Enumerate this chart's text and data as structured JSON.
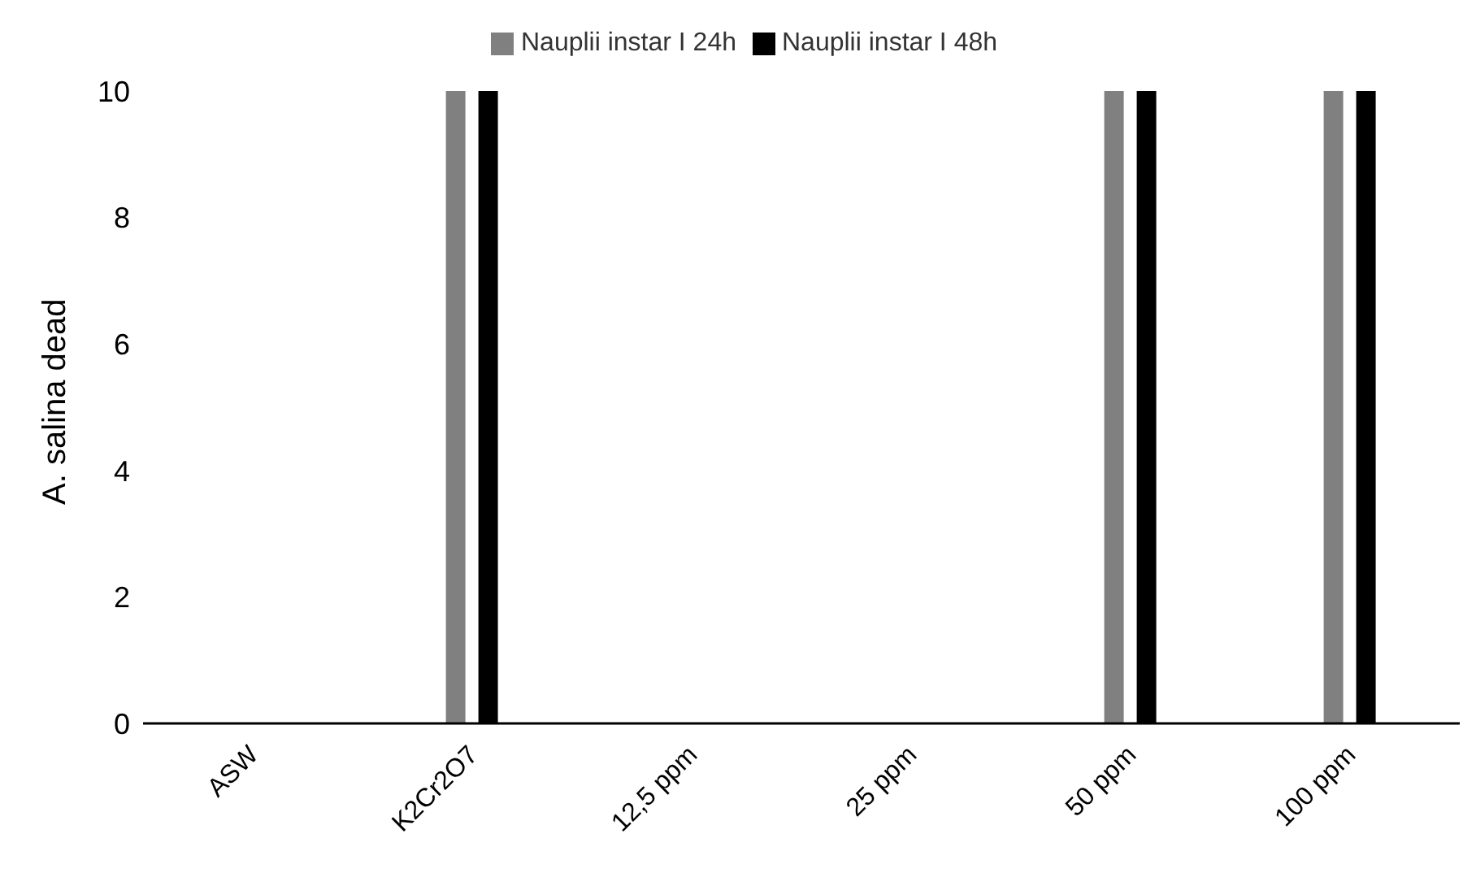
{
  "chart_data": {
    "type": "bar",
    "ylabel": "A. salina dead",
    "categories": [
      "ASW",
      "K2Cr2O7",
      "12,5 ppm",
      "25 ppm",
      "50 ppm",
      "100 ppm"
    ],
    "series": [
      {
        "name": "Nauplii instar I 24h",
        "color": "#808080",
        "values": [
          0,
          10,
          0,
          0,
          10,
          10
        ]
      },
      {
        "name": "Nauplii instar I 48h",
        "color": "#000000",
        "values": [
          0,
          10,
          0,
          0,
          10,
          10
        ]
      }
    ],
    "ylim": [
      0,
      10
    ],
    "yticks": [
      0,
      2,
      4,
      6,
      8,
      10
    ],
    "grid": false,
    "legend": "top"
  }
}
